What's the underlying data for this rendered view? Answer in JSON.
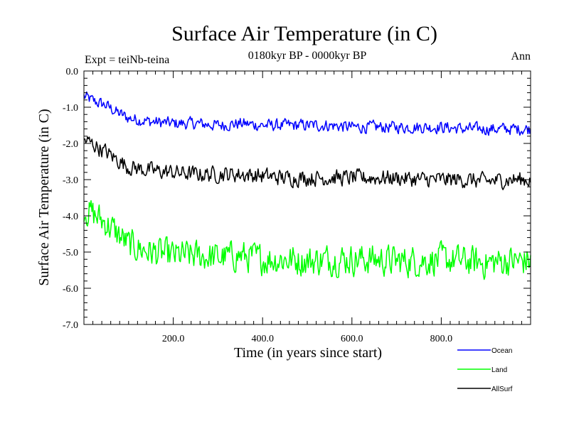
{
  "chart_data": {
    "type": "line",
    "title": "Surface Air Temperature (in C)",
    "subtitle": "0180kyr BP - 0000kyr BP",
    "left_label": "Expt = teiNb-teina",
    "right_label": "Ann",
    "xlabel": "Time (in years since start)",
    "ylabel": "Surface Air Temperature (in C)",
    "xlim": [
      0,
      1000
    ],
    "ylim": [
      -7.0,
      0.0
    ],
    "x_ticks": [
      200,
      400,
      600,
      800
    ],
    "x_tick_labels": [
      "200.0",
      "400.0",
      "600.0",
      "800.0"
    ],
    "y_ticks": [
      0,
      -1,
      -2,
      -3,
      -4,
      -5,
      -6,
      -7
    ],
    "y_tick_labels": [
      "0.0",
      "-1.0",
      "-2.0",
      "-3.0",
      "-4.0",
      "-5.0",
      "-6.0",
      "-7.0"
    ],
    "legend_position": "bottom-right",
    "series": [
      {
        "name": "Ocean",
        "color": "#0000ff",
        "x": [
          0,
          25,
          50,
          75,
          100,
          150,
          200,
          250,
          300,
          350,
          400,
          450,
          500,
          550,
          600,
          650,
          700,
          750,
          800,
          850,
          900,
          950,
          1000
        ],
        "values": [
          -0.7,
          -0.85,
          -0.95,
          -1.15,
          -1.3,
          -1.4,
          -1.45,
          -1.45,
          -1.5,
          -1.45,
          -1.5,
          -1.5,
          -1.5,
          -1.5,
          -1.55,
          -1.55,
          -1.55,
          -1.55,
          -1.55,
          -1.6,
          -1.6,
          -1.6,
          -1.6
        ],
        "noise": 0.15
      },
      {
        "name": "Land",
        "color": "#00ff00",
        "x": [
          0,
          25,
          50,
          75,
          100,
          150,
          200,
          250,
          300,
          350,
          400,
          450,
          500,
          550,
          600,
          650,
          700,
          750,
          800,
          850,
          900,
          950,
          1000
        ],
        "values": [
          -3.8,
          -4.0,
          -4.2,
          -4.5,
          -4.8,
          -5.0,
          -5.1,
          -5.1,
          -5.15,
          -5.1,
          -5.2,
          -5.2,
          -5.25,
          -5.2,
          -5.2,
          -5.2,
          -5.25,
          -5.25,
          -5.2,
          -5.25,
          -5.3,
          -5.25,
          -5.25
        ],
        "noise": 0.38
      },
      {
        "name": "AllSurf",
        "color": "#000000",
        "x": [
          0,
          25,
          50,
          75,
          100,
          150,
          200,
          250,
          300,
          350,
          400,
          450,
          500,
          550,
          600,
          650,
          700,
          750,
          800,
          850,
          900,
          950,
          1000
        ],
        "values": [
          -1.9,
          -2.05,
          -2.25,
          -2.45,
          -2.65,
          -2.75,
          -2.8,
          -2.85,
          -2.85,
          -2.85,
          -2.9,
          -2.95,
          -2.95,
          -2.95,
          -2.95,
          -2.95,
          -2.95,
          -3.0,
          -3.0,
          -3.0,
          -3.05,
          -3.0,
          -3.0
        ],
        "noise": 0.2
      }
    ]
  }
}
